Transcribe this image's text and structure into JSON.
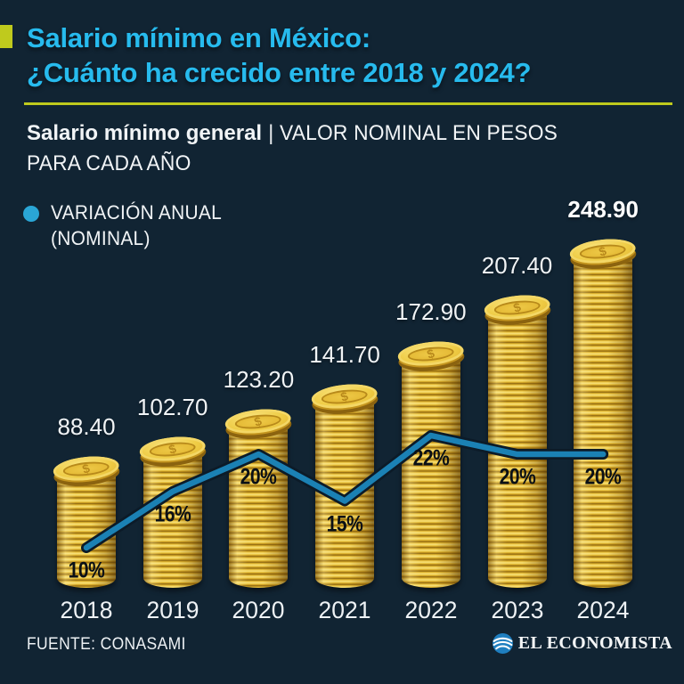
{
  "title": {
    "line1": "Salario mínimo en México:",
    "line2": "¿Cuánto ha crecido entre 2018 y 2024?"
  },
  "subtitle": {
    "bold": "Salario mínimo general",
    "separator": "|",
    "line1_rest": "VALOR NOMINAL EN PESOS",
    "line2": "PARA CADA AÑO"
  },
  "legend": {
    "line1": "VARIACIÓN ANUAL",
    "line2": "(NOMINAL)"
  },
  "footer": {
    "source": "FUENTE: CONASAMI",
    "brand": "EL ECONOMISTA"
  },
  "colors": {
    "background": "#112433",
    "title_cyan": "#27bbee",
    "accent_yellow_green": "#bfca1d",
    "line_blue": "#1b81b4",
    "legend_dot_blue": "#2aa6d6",
    "coin_gold": "#ecc63e",
    "pct_text_black": "#0a1016",
    "text_white": "#f1f4f6"
  },
  "chart_data": {
    "type": "bar",
    "subtype": "coin-stack columns with overlaid line of annual variation",
    "title": "Salario mínimo en México: ¿Cuánto ha crecido entre 2018 y 2024?",
    "xlabel": "",
    "ylabel": "Salario mínimo general, valor nominal en pesos para cada año",
    "categories": [
      "2018",
      "2019",
      "2020",
      "2021",
      "2022",
      "2023",
      "2024"
    ],
    "series": [
      {
        "name": "Salario mínimo general (valor nominal en pesos)",
        "type": "bar",
        "values": [
          88.4,
          102.7,
          123.2,
          141.7,
          172.9,
          207.4,
          248.9
        ],
        "labels": [
          "88.40",
          "102.70",
          "123.20",
          "141.70",
          "172.90",
          "207.40",
          "248.90"
        ]
      },
      {
        "name": "Variación anual (nominal)",
        "type": "line",
        "values": [
          10,
          16,
          20,
          15,
          22,
          20,
          20
        ],
        "labels": [
          "10%",
          "16%",
          "20%",
          "15%",
          "22%",
          "20%",
          "20%"
        ]
      }
    ],
    "ylim": [
      0,
      260
    ],
    "grid": false,
    "legend_position": "top-left",
    "coin_symbol": "$"
  }
}
